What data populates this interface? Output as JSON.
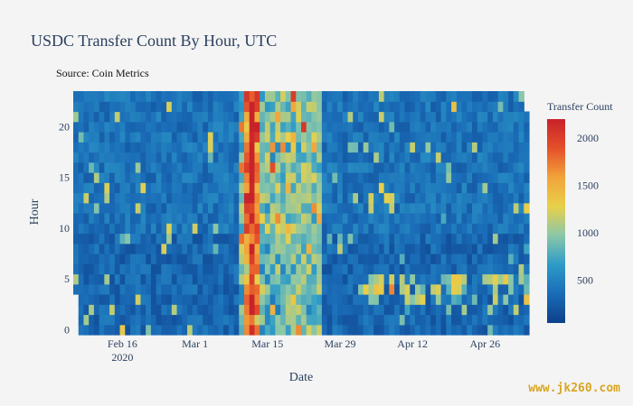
{
  "chart_data": {
    "type": "heatmap",
    "title": "USDC Transfer Count By Hour, UTC",
    "subtitle": "Source: Coin Metrics",
    "xlabel": "Date",
    "ylabel": "Hour",
    "x_range": [
      "2020-02-07",
      "2020-05-05"
    ],
    "y_range": [
      0,
      23
    ],
    "x_ticks": [
      {
        "date": "2020-02-16",
        "label": "Feb 16",
        "sublabel": "2020"
      },
      {
        "date": "2020-03-01",
        "label": "Mar 1",
        "sublabel": ""
      },
      {
        "date": "2020-03-15",
        "label": "Mar 15",
        "sublabel": ""
      },
      {
        "date": "2020-03-29",
        "label": "Mar 29",
        "sublabel": ""
      },
      {
        "date": "2020-04-12",
        "label": "Apr 12",
        "sublabel": ""
      },
      {
        "date": "2020-04-26",
        "label": "Apr 26",
        "sublabel": ""
      }
    ],
    "y_ticks": [
      0,
      5,
      10,
      15,
      20
    ],
    "colorbar": {
      "title": "Transfer Count",
      "min": 50,
      "max": 2200,
      "ticks": [
        500,
        1000,
        1500,
        2000
      ],
      "colorscale": [
        "#0d3f8a",
        "#1a6cb7",
        "#2d9bc7",
        "#8ac7a9",
        "#e8d04a",
        "#f2a33a",
        "#e4502a",
        "#c8222a"
      ]
    },
    "notable_values": {
      "peak_date": "2020-03-12",
      "peak_count": 2200,
      "high_activity_period": [
        "2020-03-10",
        "2020-03-25"
      ],
      "late_period_hot_hours": [
        3,
        4,
        5
      ]
    }
  },
  "watermark": "www.jk260.com"
}
